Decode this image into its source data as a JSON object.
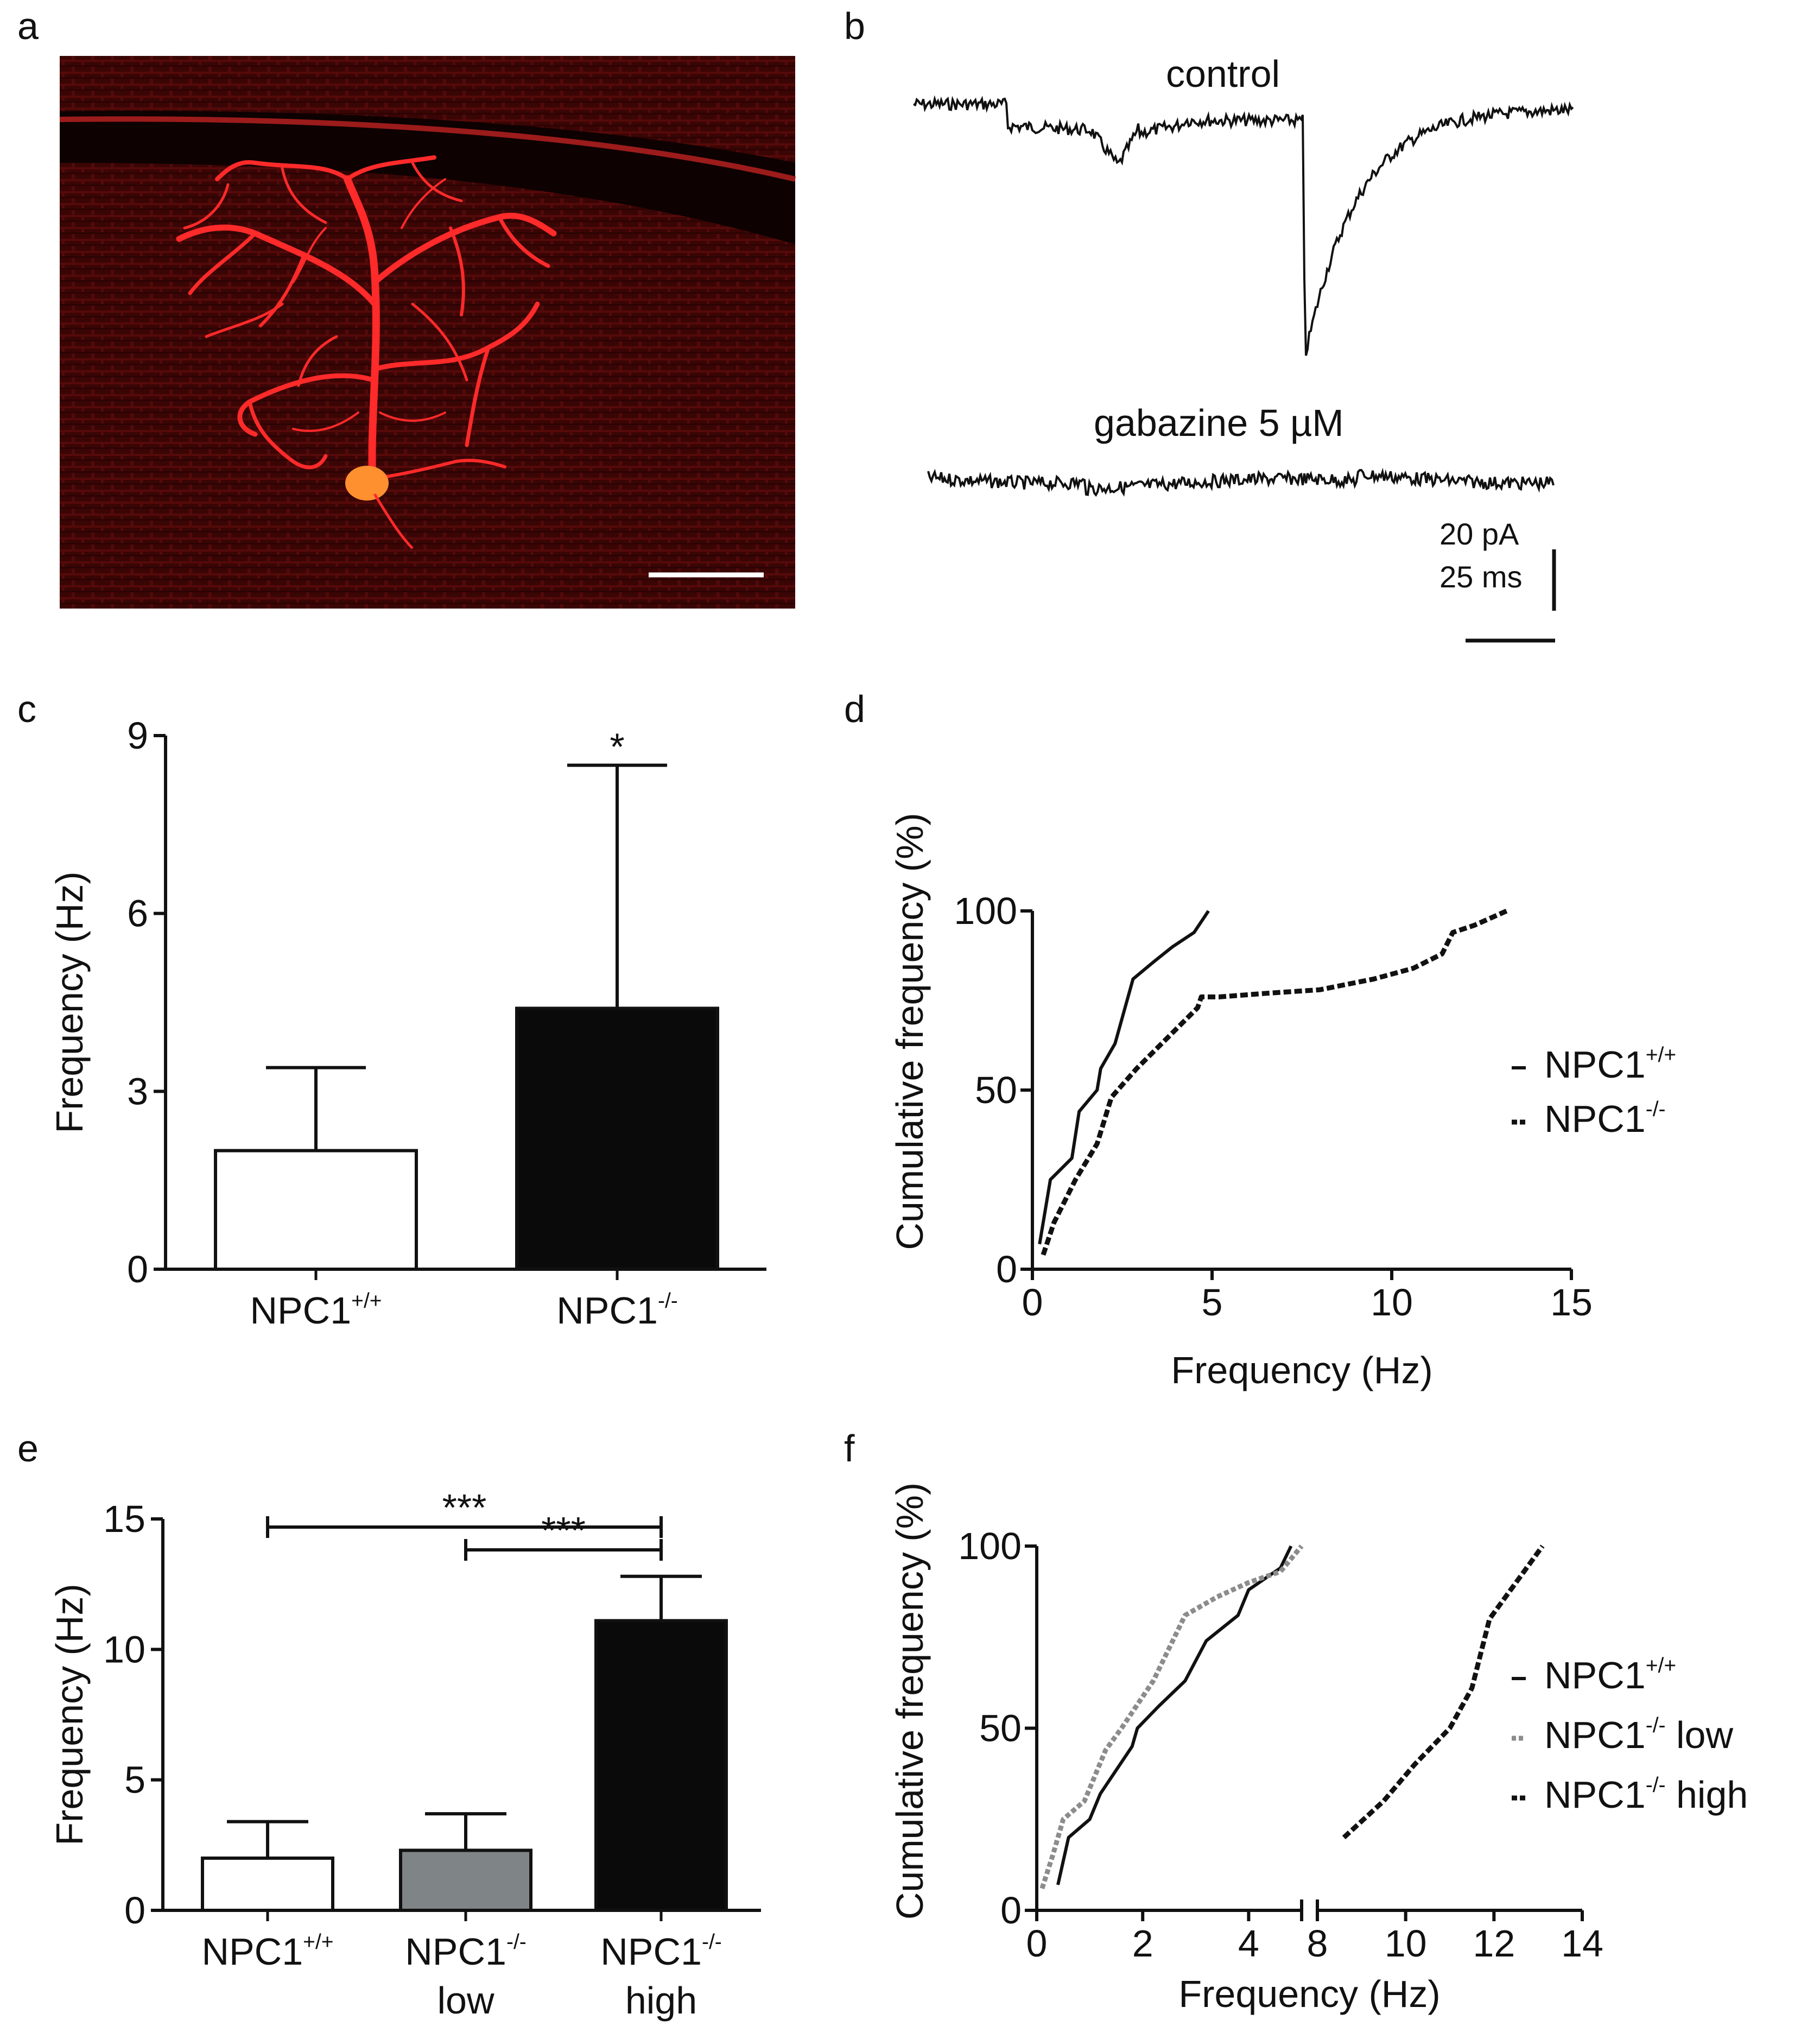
{
  "panels": {
    "a": {
      "label": "a"
    },
    "b": {
      "label": "b",
      "trace_top_label": "control",
      "trace_bottom_label": "gabazine 5 µM",
      "scale_pA": "20 pA",
      "scale_ms": "25 ms"
    },
    "c": {
      "label": "c"
    },
    "d": {
      "label": "d"
    },
    "e": {
      "label": "e"
    },
    "f": {
      "label": "f"
    }
  },
  "colors": {
    "micrograph_bg": "#3a0505",
    "neuron": "#ff2a2a",
    "soma": "#ff9030",
    "black_bar": "#0a0a0a",
    "gray_bar": "#7f8487",
    "gray_line": "#8c8c8c"
  },
  "chart_data": [
    {
      "panel": "c",
      "type": "bar",
      "categories": [
        "NPC1+/+",
        "NPC1-/-"
      ],
      "category_sup": [
        "+/+",
        "-/-"
      ],
      "values": [
        2.0,
        4.4
      ],
      "error_upper": [
        3.4,
        8.5
      ],
      "bar_colors": [
        "#ffffff",
        "#0a0a0a"
      ],
      "ylabel": "Frequency (Hz)",
      "ylim": [
        0,
        9
      ],
      "yticks": [
        0,
        3,
        6,
        9
      ],
      "annotation": "*"
    },
    {
      "panel": "d",
      "type": "line",
      "xlabel": "Frequency (Hz)",
      "ylabel": "Cumulative frequency (%)",
      "xlim": [
        0,
        15
      ],
      "ylim": [
        0,
        100
      ],
      "xticks": [
        0,
        5,
        10,
        15
      ],
      "yticks": [
        0,
        50,
        100
      ],
      "legend_position": "right",
      "series": [
        {
          "name": "NPC1+/+",
          "name_base": "NPC1",
          "name_sup": "+/+",
          "style": "solid",
          "color": "#111111",
          "x": [
            0.2,
            0.5,
            1.1,
            1.3,
            1.8,
            1.9,
            2.3,
            2.8,
            3.4,
            3.9,
            4.5,
            4.9
          ],
          "y": [
            7,
            25,
            31,
            44,
            50,
            56,
            63,
            81,
            86,
            90,
            94,
            100
          ]
        },
        {
          "name": "NPC1-/-",
          "name_base": "NPC1",
          "name_sup": "-/-",
          "style": "dashed",
          "color": "#111111",
          "x": [
            0.3,
            0.6,
            1.2,
            1.8,
            2.2,
            2.9,
            3.5,
            4.2,
            4.6,
            4.7,
            5.2,
            6.5,
            8.0,
            9.5,
            10.6,
            11.4,
            11.7,
            12.3,
            13.2
          ],
          "y": [
            4,
            13,
            25,
            35,
            48,
            56,
            62,
            69,
            73,
            76,
            76,
            77,
            78,
            81,
            84,
            88,
            94,
            96,
            100
          ]
        }
      ]
    },
    {
      "panel": "e",
      "type": "bar",
      "categories": [
        "NPC1+/+",
        "NPC1-/- low",
        "NPC1-/- high"
      ],
      "category_line1": [
        "NPC1",
        "NPC1",
        "NPC1"
      ],
      "category_sup": [
        "+/+",
        "-/-",
        "-/-"
      ],
      "category_line2": [
        "",
        "low",
        "high"
      ],
      "values": [
        2.0,
        2.3,
        11.1
      ],
      "error_upper": [
        3.4,
        3.7,
        12.8
      ],
      "bar_colors": [
        "#ffffff",
        "#7f8487",
        "#0a0a0a"
      ],
      "ylabel": "Frequency (Hz)",
      "ylim": [
        0,
        15
      ],
      "yticks": [
        0,
        5,
        10,
        15
      ],
      "significance": [
        {
          "from": 0,
          "to": 2,
          "label": "***"
        },
        {
          "from": 1,
          "to": 2,
          "label": "***"
        }
      ]
    },
    {
      "panel": "f",
      "type": "line",
      "xlabel": "Frequency (Hz)",
      "ylabel": "Cumulative frequency (%)",
      "x_broken_axis": true,
      "xticks_left": [
        0,
        2,
        4
      ],
      "xticks_right": [
        8,
        10,
        12,
        14
      ],
      "ylim": [
        0,
        100
      ],
      "yticks": [
        0,
        50,
        100
      ],
      "legend_position": "right",
      "series": [
        {
          "name": "NPC1+/+",
          "name_base": "NPC1",
          "name_sup": "+/+",
          "name_suffix": "",
          "style": "solid",
          "color": "#111111",
          "x": [
            0.4,
            0.6,
            1.0,
            1.2,
            1.8,
            1.9,
            2.3,
            2.8,
            3.2,
            3.8,
            4.0,
            4.6,
            4.8
          ],
          "y": [
            7,
            20,
            25,
            32,
            45,
            50,
            56,
            63,
            74,
            81,
            88,
            94,
            100
          ]
        },
        {
          "name": "NPC1-/- low",
          "name_base": "NPC1",
          "name_sup": "-/-",
          "name_suffix": "low",
          "style": "dotted",
          "color": "#8c8c8c",
          "x": [
            0.1,
            0.3,
            0.5,
            0.9,
            1.3,
            1.6,
            2.2,
            2.8,
            3.4,
            4.0,
            4.6,
            5.0
          ],
          "y": [
            6,
            15,
            25,
            30,
            44,
            50,
            63,
            81,
            86,
            90,
            93,
            100
          ]
        },
        {
          "name": "NPC1-/- high",
          "name_base": "NPC1",
          "name_sup": "-/-",
          "name_suffix": "high",
          "style": "dashed",
          "color": "#111111",
          "x": [
            8.6,
            9.5,
            10.2,
            11.0,
            11.5,
            11.9,
            12.5,
            13.1
          ],
          "y": [
            20,
            30,
            40,
            50,
            61,
            80,
            90,
            100
          ]
        }
      ]
    }
  ]
}
